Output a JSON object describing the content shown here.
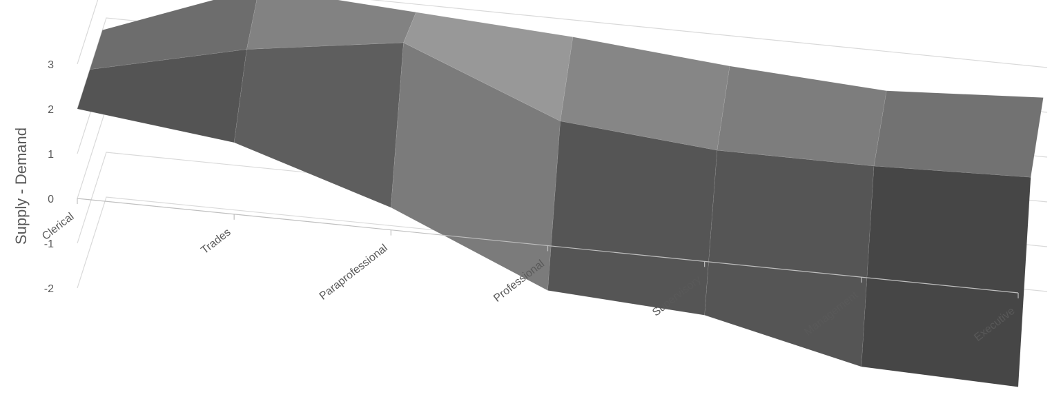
{
  "chart_data": {
    "type": "surface",
    "ylabel": "Supply - Demand",
    "xlabel": "",
    "title": "",
    "categories": [
      "Clerical",
      "Trades",
      "Paraprofessional",
      "Professional",
      "Supervisory",
      "Management",
      "Executive"
    ],
    "y_ticks": [
      -2,
      -1,
      0,
      1,
      2,
      3
    ],
    "ylim": [
      -2,
      3.5
    ],
    "grid": true,
    "legend": "none",
    "series": [
      {
        "values": [
          2,
          1.6,
          0.5,
          -1,
          -1.2,
          -2,
          -2.1
        ]
      },
      {
        "values": [
          2,
          2.8,
          3.3,
          1.9,
          1.6,
          1.6,
          1.7
        ]
      },
      {
        "values": [
          2,
          3.3,
          3.1,
          2.9,
          2.6,
          2.4,
          2.6
        ]
      }
    ],
    "colors": {
      "surface_light": "#c8c8ca",
      "surface_mid": "#9b9b9d",
      "surface_dark": "#555557",
      "surface_darkest": "#2d2d2f",
      "gridline": "#d9d9d9",
      "text": "#595959"
    }
  }
}
